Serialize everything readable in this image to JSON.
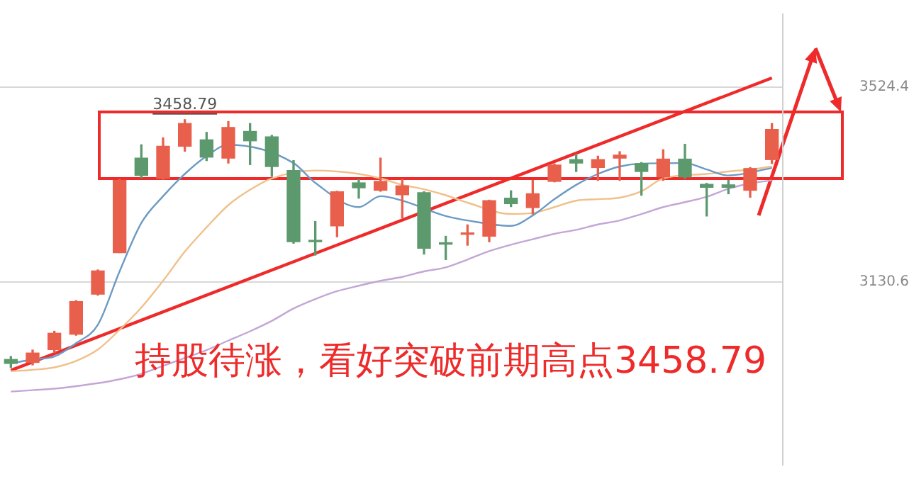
{
  "chart_data": {
    "type": "candlestick",
    "categories": [
      null,
      null,
      null,
      null,
      null,
      null,
      null,
      null,
      null,
      null,
      null,
      null,
      null,
      null,
      null,
      null,
      null,
      null,
      null,
      null,
      null,
      null,
      null,
      null,
      null,
      null,
      null,
      null,
      null,
      null,
      null,
      null,
      null,
      null,
      null,
      null
    ],
    "ohlc": [
      [
        2974,
        2980,
        2958,
        2966
      ],
      [
        2968,
        2993,
        2963,
        2987
      ],
      [
        2994,
        3031,
        2988,
        3027
      ],
      [
        3025,
        3093,
        3023,
        3091
      ],
      [
        3106,
        3155,
        3104,
        3153
      ],
      [
        3190,
        3338,
        3190,
        3336
      ],
      [
        3381,
        3408,
        3341,
        3346
      ],
      [
        3340,
        3422,
        3338,
        3405
      ],
      [
        3405,
        3458.79,
        3395,
        3451
      ],
      [
        3418,
        3433,
        3376,
        3383
      ],
      [
        3381,
        3455,
        3371,
        3443
      ],
      [
        3435,
        3451,
        3368,
        3416
      ],
      [
        3424,
        3427,
        3344,
        3364
      ],
      [
        3356,
        3376,
        3209,
        3212
      ],
      [
        3214,
        3253,
        3185,
        3212
      ],
      [
        3244,
        3314,
        3222,
        3313
      ],
      [
        3331,
        3338,
        3300,
        3321
      ],
      [
        3316,
        3381,
        3314,
        3334
      ],
      [
        3307,
        3338,
        3260,
        3325
      ],
      [
        3311,
        3313,
        3187,
        3199
      ],
      [
        3210,
        3223,
        3176,
        3207
      ],
      [
        3227,
        3246,
        3205,
        3229
      ],
      [
        3223,
        3296,
        3212,
        3295
      ],
      [
        3300,
        3315,
        3283,
        3289
      ],
      [
        3281,
        3336,
        3268,
        3309
      ],
      [
        3334,
        3369,
        3333,
        3367
      ],
      [
        3378,
        3389,
        3354,
        3371
      ],
      [
        3362,
        3385,
        3336,
        3378
      ],
      [
        3381,
        3394,
        3336,
        3387
      ],
      [
        3370,
        3372,
        3306,
        3354
      ],
      [
        3343,
        3398,
        3336,
        3379
      ],
      [
        3379,
        3409,
        3340,
        3343
      ],
      [
        3328,
        3330,
        3264,
        3322
      ],
      [
        3327,
        3336,
        3309,
        3322
      ],
      [
        3316,
        3362,
        3302,
        3360
      ],
      [
        3378,
        3451,
        3370,
        3439
      ]
    ],
    "colors": [
      "#5c9a6e",
      "#e8604c",
      "#e8604c",
      "#e8604c",
      "#e8604c",
      "#e8604c",
      "#5c9a6e",
      "#e8604c",
      "#e8604c",
      "#5c9a6e",
      "#e8604c",
      "#5c9a6e",
      "#5c9a6e",
      "#5c9a6e",
      "#5c9a6e",
      "#e8604c",
      "#5c9a6e",
      "#e8604c",
      "#e8604c",
      "#5c9a6e",
      "#5c9a6e",
      "#e8604c",
      "#e8604c",
      "#5c9a6e",
      "#e8604c",
      "#e8604c",
      "#5c9a6e",
      "#e8604c",
      "#e8604c",
      "#5c9a6e",
      "#e8604c",
      "#5c9a6e",
      "#5c9a6e",
      "#5c9a6e",
      "#e8604c",
      "#e8604c"
    ],
    "series": [
      {
        "type": "line",
        "color": "#6b9ac4",
        "values": [
          2966,
          2974,
          2980,
          3007,
          3044,
          3152,
          3250,
          3304,
          3349,
          3385,
          3408,
          null,
          null,
          3371,
          3331,
          null,
          3282,
          3304,
          3295,
          null,
          3264,
          3255,
          null,
          3244,
          3265,
          3298,
          3327,
          3349,
          3364,
          3370,
          null,
          3371,
          3358,
          3346,
          null,
          3361
        ]
      },
      {
        "type": "line",
        "color": "#f0c08a",
        "values": [
          2950,
          2953,
          2958,
          2971,
          2994,
          3034,
          3079,
          3133,
          3192,
          3241,
          3286,
          3317,
          3340,
          null,
          3356,
          3354,
          3349,
          3340,
          3327,
          3318,
          3306,
          3291,
          null,
          3268,
          3270,
          3282,
          3295,
          3298,
          3301,
          3314,
          3340,
          null,
          3349,
          3354,
          3358,
          3364
        ]
      },
      {
        "type": "line",
        "color": "#ee2a2a",
        "values": [
          2952,
          null,
          null,
          null,
          null,
          null,
          null,
          null,
          null,
          null,
          null,
          null,
          null,
          null,
          null,
          null,
          null,
          null,
          null,
          null,
          null,
          null,
          null,
          null,
          null,
          null,
          null,
          null,
          null,
          null,
          null,
          null,
          null,
          null,
          null,
          3543
        ]
      },
      {
        "type": "line",
        "color": "#c3a6d6",
        "values": [
          2909,
          2912,
          2915,
          2920,
          2926,
          2934,
          2945,
          2961,
          2977,
          2993,
          3012,
          3031,
          3052,
          3077,
          3096,
          3112,
          3123,
          3133,
          3141,
          3152,
          3160,
          3176,
          3193,
          3206,
          3217,
          3228,
          3236,
          3247,
          3255,
          3268,
          3282,
          3292,
          3303,
          3319,
          3330,
          3336
        ]
      }
    ],
    "ylim": [
      2761,
      3672
    ],
    "yticks": [
      3130.6,
      3524.4
    ],
    "grid": "y",
    "tick_labels": "y",
    "annotations": [
      "持股待涨，看好突破前期高点3458.79",
      {
        "text": "3458.79",
        "y": 3458.79
      }
    ]
  }
}
